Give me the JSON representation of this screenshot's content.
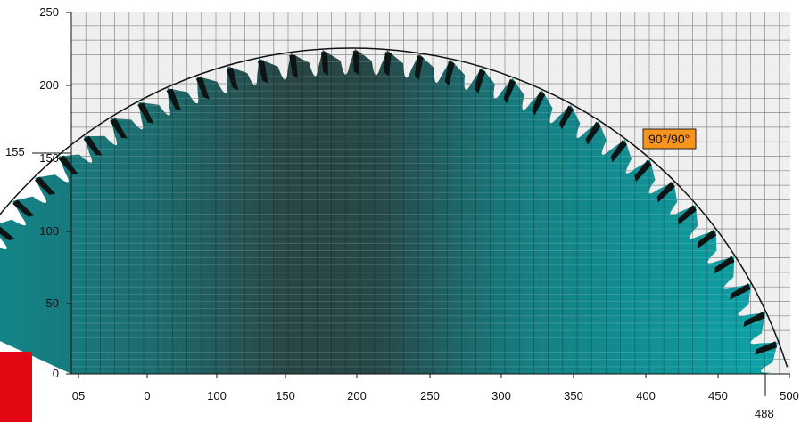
{
  "x_ticks": [
    "05",
    "0",
    "100",
    "150",
    "200",
    "250",
    "300",
    "350",
    "400",
    "450",
    "500"
  ],
  "y_ticks": [
    "0",
    "50",
    "100",
    "150",
    "200",
    "250"
  ],
  "cut_start_label": "155",
  "max_width_label": "488",
  "angle_badge": "90°/90°",
  "colors": {
    "blade": "#119aa0",
    "blade_shadow": "#1f4a4a",
    "grid": "#8a8a8a",
    "grid_background": "#efefef",
    "badge": "#f7941d",
    "corner_mark": "#e30613"
  },
  "tooth_count": 34
}
